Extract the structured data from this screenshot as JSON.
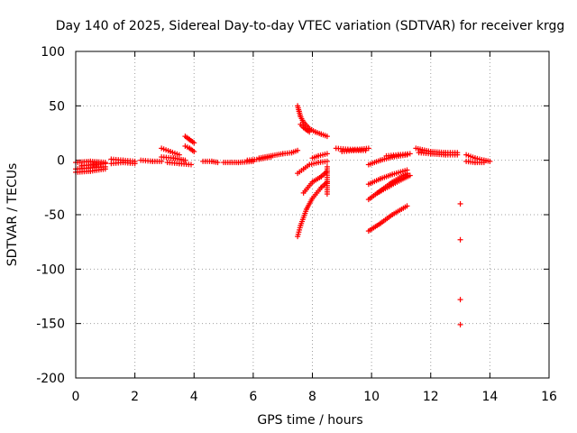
{
  "chart_data": {
    "type": "scatter",
    "title": "Day 140 of 2025, Sidereal Day-to-day VTEC variation (SDTVAR) for receiver krgg",
    "xlabel": "GPS time / hours",
    "ylabel": "SDTVAR / TECUs",
    "xlim": [
      0,
      16
    ],
    "ylim": [
      -200,
      100
    ],
    "xticks": [
      "0",
      "2",
      "4",
      "6",
      "8",
      "10",
      "12",
      "14",
      "16"
    ],
    "yticks": [
      "100",
      "50",
      "0",
      "-50",
      "-100",
      "-150",
      "-200"
    ],
    "grid": true,
    "marker": "+",
    "marker_color": "#ff0000",
    "segments": [
      {
        "x": [
          0.0,
          0.5,
          1.0
        ],
        "y": [
          -2,
          -1,
          -2
        ]
      },
      {
        "x": [
          0.0,
          0.5,
          1.0
        ],
        "y": [
          -8,
          -7,
          -6
        ]
      },
      {
        "x": [
          0.0,
          0.5,
          1.0
        ],
        "y": [
          -11,
          -10,
          -8
        ]
      },
      {
        "x": [
          0.2,
          0.6,
          1.0
        ],
        "y": [
          -5,
          -4,
          -3
        ]
      },
      {
        "x": [
          1.2,
          1.6,
          2.0
        ],
        "y": [
          1,
          0,
          -1
        ]
      },
      {
        "x": [
          1.2,
          1.6,
          2.0
        ],
        "y": [
          -3,
          -2,
          -3
        ]
      },
      {
        "x": [
          2.2,
          2.6,
          2.9
        ],
        "y": [
          0,
          -1,
          -1
        ]
      },
      {
        "x": [
          2.9,
          3.3,
          3.7
        ],
        "y": [
          3,
          2,
          0
        ]
      },
      {
        "x": [
          2.9,
          3.2,
          3.5
        ],
        "y": [
          11,
          8,
          5
        ]
      },
      {
        "x": [
          3.1,
          3.5,
          3.9
        ],
        "y": [
          -2,
          -3,
          -4
        ]
      },
      {
        "x": [
          3.7,
          3.85,
          4.0
        ],
        "y": [
          22,
          19,
          16
        ]
      },
      {
        "x": [
          3.7,
          3.85,
          4.0
        ],
        "y": [
          13,
          11,
          8
        ]
      },
      {
        "x": [
          4.3,
          4.6,
          4.8
        ],
        "y": [
          -1,
          -1,
          -2
        ]
      },
      {
        "x": [
          5.0,
          5.5,
          6.0
        ],
        "y": [
          -2,
          -2,
          -1
        ]
      },
      {
        "x": [
          5.8,
          6.2,
          6.6
        ],
        "y": [
          0,
          1,
          3
        ]
      },
      {
        "x": [
          6.2,
          6.6,
          7.0
        ],
        "y": [
          2,
          4,
          6
        ]
      },
      {
        "x": [
          7.0,
          7.3,
          7.5
        ],
        "y": [
          6,
          7,
          9
        ]
      },
      {
        "x": [
          7.5,
          7.55,
          7.6,
          7.7,
          7.8,
          7.9,
          8.1,
          8.3,
          8.5
        ],
        "y": [
          50,
          45,
          40,
          35,
          32,
          29,
          26,
          24,
          22
        ]
      },
      {
        "x": [
          7.6,
          7.7,
          7.8,
          7.9
        ],
        "y": [
          33,
          30,
          28,
          26
        ]
      },
      {
        "x": [
          7.5,
          7.6,
          7.8,
          8.0,
          8.3,
          8.5
        ],
        "y": [
          -70,
          -60,
          -45,
          -35,
          -25,
          -20
        ]
      },
      {
        "x": [
          7.5,
          7.7,
          7.9,
          8.2,
          8.5
        ],
        "y": [
          -12,
          -8,
          -4,
          -2,
          -1
        ]
      },
      {
        "x": [
          7.7,
          8.0,
          8.3,
          8.5
        ],
        "y": [
          -30,
          -20,
          -15,
          -10
        ]
      },
      {
        "x": [
          8.0,
          8.2,
          8.5
        ],
        "y": [
          2,
          4,
          6
        ]
      },
      {
        "x": [
          8.5,
          8.5
        ],
        "y": [
          -6,
          -31
        ]
      },
      {
        "x": [
          8.8,
          9.2,
          9.6,
          9.9
        ],
        "y": [
          11,
          10,
          10,
          11
        ]
      },
      {
        "x": [
          9.0,
          9.4,
          9.8
        ],
        "y": [
          8,
          9,
          9
        ]
      },
      {
        "x": [
          9.9,
          10.3,
          10.7,
          11.2
        ],
        "y": [
          -65,
          -58,
          -50,
          -42
        ]
      },
      {
        "x": [
          9.9,
          10.3,
          10.7,
          11.2
        ],
        "y": [
          -36,
          -28,
          -20,
          -12
        ]
      },
      {
        "x": [
          9.9,
          10.3,
          10.7,
          11.2
        ],
        "y": [
          -22,
          -17,
          -13,
          -9
        ]
      },
      {
        "x": [
          9.9,
          10.3,
          10.7,
          11.2
        ],
        "y": [
          -4,
          0,
          3,
          5
        ]
      },
      {
        "x": [
          10.2,
          10.6,
          11.0,
          11.3
        ],
        "y": [
          -30,
          -24,
          -18,
          -14
        ]
      },
      {
        "x": [
          10.5,
          10.9,
          11.3
        ],
        "y": [
          4,
          5,
          6
        ]
      },
      {
        "x": [
          11.5,
          12.0,
          12.5,
          12.9
        ],
        "y": [
          11,
          8,
          7,
          7
        ]
      },
      {
        "x": [
          11.6,
          12.0,
          12.5,
          12.9
        ],
        "y": [
          7,
          6,
          5,
          5
        ]
      },
      {
        "x": [
          13.0
        ],
        "y": [
          -40
        ]
      },
      {
        "x": [
          13.0
        ],
        "y": [
          -73
        ]
      },
      {
        "x": [
          13.0
        ],
        "y": [
          -128
        ]
      },
      {
        "x": [
          13.0
        ],
        "y": [
          -151
        ]
      },
      {
        "x": [
          13.2,
          13.5,
          13.8,
          14.0
        ],
        "y": [
          5,
          2,
          0,
          -1
        ]
      },
      {
        "x": [
          13.2,
          13.5,
          13.8
        ],
        "y": [
          -1,
          -2,
          -2
        ]
      }
    ]
  }
}
